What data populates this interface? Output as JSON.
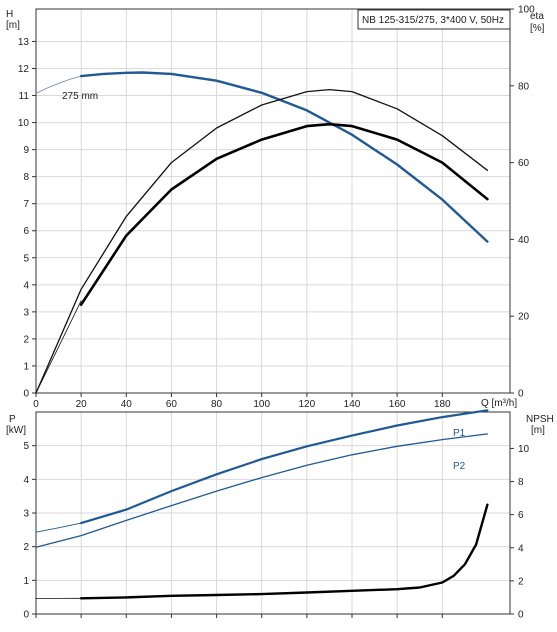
{
  "chart_data": [
    {
      "type": "line",
      "title": "NB 125-315/275, 3*400 V, 50Hz",
      "xlabel": "Q [m³/h]",
      "x_ticks": [
        0,
        20,
        40,
        60,
        80,
        100,
        120,
        140,
        160,
        180
      ],
      "xlim": [
        0,
        210
      ],
      "y_left": {
        "label_line1": "H",
        "label_line2": "[m]",
        "ticks": [
          0,
          1,
          2,
          3,
          4,
          5,
          6,
          7,
          8,
          9,
          10,
          11,
          12,
          13
        ],
        "lim": [
          0,
          14.2
        ]
      },
      "y_right": {
        "label_line1": "eta",
        "label_line2": "[%]",
        "ticks": [
          0,
          20,
          40,
          60,
          80,
          100
        ],
        "lim": [
          0,
          100
        ]
      },
      "annotations": [
        {
          "text": "275 mm"
        }
      ],
      "series": [
        {
          "id": "h_ext",
          "axis": "left",
          "color": "#6e7fb3",
          "width": 0.8,
          "x": [
            0,
            5,
            10,
            15,
            20
          ],
          "y": [
            11.08,
            11.28,
            11.45,
            11.6,
            11.72
          ]
        },
        {
          "id": "h",
          "axis": "left",
          "color": "#1f5a96",
          "width": 2.4,
          "x": [
            20,
            30,
            40,
            47,
            60,
            80,
            100,
            120,
            140,
            160,
            180,
            200
          ],
          "y": [
            11.72,
            11.8,
            11.84,
            11.85,
            11.8,
            11.55,
            11.1,
            10.45,
            9.55,
            8.45,
            7.15,
            5.6
          ]
        },
        {
          "id": "eta1",
          "axis": "right",
          "color": "#111111",
          "width": 1.3,
          "x": [
            0,
            20,
            40,
            60,
            80,
            100,
            120,
            130,
            140,
            160,
            180,
            200
          ],
          "y": [
            0,
            27,
            46,
            60,
            69,
            75,
            78.5,
            79,
            78.5,
            74,
            67,
            58
          ]
        },
        {
          "id": "eta2_ext",
          "axis": "right",
          "color": "#111111",
          "width": 0.8,
          "x": [
            0,
            10,
            20
          ],
          "y": [
            0,
            12,
            24
          ]
        },
        {
          "id": "eta2",
          "axis": "right",
          "color": "#000000",
          "width": 2.6,
          "x": [
            20,
            40,
            60,
            80,
            100,
            120,
            130,
            140,
            160,
            180,
            200
          ],
          "y": [
            23,
            41,
            53,
            61,
            66,
            69.5,
            70,
            69.5,
            66,
            60,
            50.5
          ]
        }
      ]
    },
    {
      "type": "line",
      "x_ticks": [
        0,
        20,
        40,
        60,
        80,
        100,
        120,
        140,
        160,
        180
      ],
      "xlim": [
        0,
        210
      ],
      "y_left": {
        "label_line1": "P",
        "label_line2": "[kW]",
        "ticks": [
          0,
          1,
          2,
          3,
          4,
          5
        ],
        "lim": [
          0,
          6.0
        ]
      },
      "y_right": {
        "label_line1": "NPSH",
        "label_line2": "[m]",
        "ticks": [
          0,
          2,
          4,
          6,
          8,
          10
        ],
        "lim": [
          0,
          12.2
        ]
      },
      "series": [
        {
          "id": "p1",
          "name": "P1",
          "axis": "left",
          "color": "#1f5a96",
          "width": 2.2,
          "x": [
            20,
            40,
            60,
            80,
            100,
            120,
            140,
            160,
            180,
            200
          ],
          "y": [
            2.7,
            3.1,
            3.65,
            4.15,
            4.6,
            4.98,
            5.3,
            5.6,
            5.85,
            6.05
          ]
        },
        {
          "id": "p1_ext",
          "axis": "left",
          "color": "#1f5a96",
          "width": 0.9,
          "x": [
            0,
            10,
            20
          ],
          "y": [
            2.43,
            2.56,
            2.7
          ]
        },
        {
          "id": "p2",
          "name": "P2",
          "axis": "left",
          "color": "#1f5a96",
          "width": 1.3,
          "x": [
            0,
            20,
            40,
            60,
            80,
            100,
            120,
            140,
            160,
            180,
            200
          ],
          "y": [
            1.98,
            2.33,
            2.78,
            3.22,
            3.65,
            4.05,
            4.42,
            4.73,
            4.98,
            5.18,
            5.35
          ]
        },
        {
          "id": "npsh_ext",
          "axis": "right",
          "color": "#111111",
          "width": 0.8,
          "x": [
            0,
            10,
            20
          ],
          "y": [
            0.93,
            0.94,
            0.95
          ]
        },
        {
          "id": "npsh",
          "axis": "right",
          "color": "#000000",
          "width": 2.4,
          "x": [
            20,
            40,
            60,
            80,
            100,
            120,
            140,
            160,
            170,
            180,
            185,
            190,
            195,
            200
          ],
          "y": [
            0.95,
            1.0,
            1.1,
            1.15,
            1.2,
            1.3,
            1.4,
            1.5,
            1.6,
            1.9,
            2.3,
            3.0,
            4.2,
            6.6
          ]
        }
      ]
    }
  ]
}
